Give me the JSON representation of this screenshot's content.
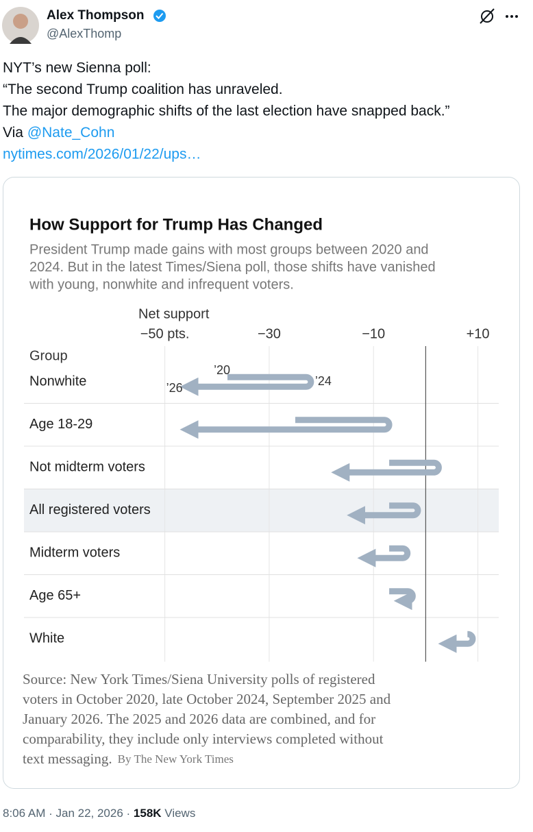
{
  "tweet": {
    "name": "Alex Thompson",
    "handle": "@AlexThomp",
    "lines": [
      "NYT’s new Sienna poll:",
      "“The second Trump coalition has unraveled.",
      "The major demographic shifts of the last election have snapped back.”"
    ],
    "via": "Via",
    "mention": "@Nate_Cohn",
    "link": "nytimes.com/2026/01/22/ups…",
    "time": "8:06 AM",
    "date": "Jan 22, 2026",
    "views": "158K",
    "views_label": "Views"
  },
  "chart_data": {
    "type": "dumbbell-arrow",
    "title": "How Support for Trump Has Changed",
    "subtitle": [
      "President Trump made gains with most groups between 2020 and",
      "2024. But in the latest Times/Siena poll, those shifts have vanished",
      "with young, nonwhite and infrequent voters."
    ],
    "xlabel": "Net support",
    "ylabel": "Group",
    "categories": [
      "Nonwhite",
      "Age 18-29",
      "Not midterm voters",
      "All registered voters",
      "Midterm voters",
      "Age 65+",
      "White"
    ],
    "series": [
      {
        "name": "’20",
        "values": [
          -38,
          -25,
          -7,
          -7,
          -7,
          -7,
          8
        ]
      },
      {
        "name": "’24",
        "values": [
          -22,
          -7,
          2.5,
          -1.5,
          -3.5,
          -2.5,
          9
        ]
      },
      {
        "name": "’26",
        "values": [
          -45,
          -45,
          -16,
          -13,
          -11,
          -4,
          4.5
        ]
      }
    ],
    "color": "#a1b1c2",
    "highlight": "All registered voters",
    "xlim": [
      -77,
      14
    ],
    "xticks": [
      {
        "value": -50,
        "label": "−50 pts."
      },
      {
        "value": -30,
        "label": "−30"
      },
      {
        "value": -10,
        "label": "−10"
      },
      {
        "value": 10,
        "label": "+10"
      }
    ],
    "grid": true,
    "source": [
      "Source: New York Times/Siena University polls of registered",
      "voters in October 2020, late October 2024, September 2025 and",
      "January 2026. The 2025 and 2026 data are combined, and for",
      "comparability, they include only interviews completed without",
      "text messaging."
    ],
    "byline": "By The New York Times"
  }
}
